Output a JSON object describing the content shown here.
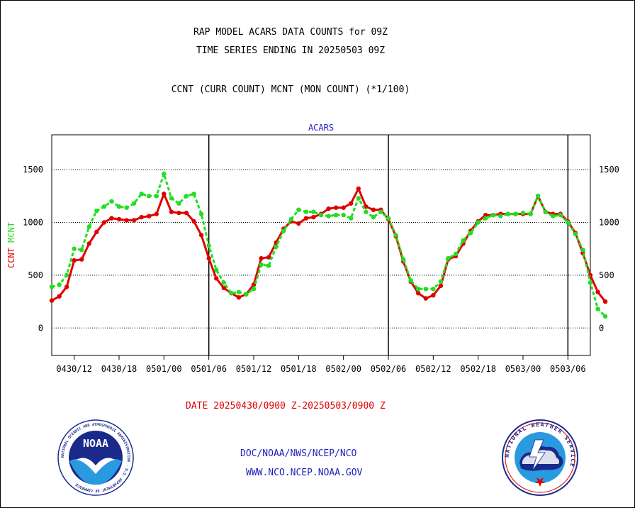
{
  "titles": {
    "line1": "RAP MODEL ACARS DATA COUNTS for 09Z",
    "line2": "TIME SERIES ENDING IN 20250503 09Z",
    "subtitle": "CCNT (CURR COUNT) MCNT (MON COUNT) (*1/100)"
  },
  "footer": {
    "date_range": "DATE 20250430/0900 Z-20250503/0900 Z",
    "org_path": "DOC/NOAA/NWS/NCEP/NCO",
    "website": "WWW.NCO.NCEP.NOAA.GOV"
  },
  "logos": {
    "noaa": {
      "text": "NOAA",
      "ring_text": "NATIONAL OCEANIC AND ATMOSPHERIC ADMINISTRATION · U.S. DEPARTMENT OF COMMERCE"
    },
    "nws": {
      "ring_text": "NATIONAL WEATHER SERVICE"
    }
  },
  "colors": {
    "ccnt": "#e00000",
    "mcnt": "#22dd22",
    "text_blue": "#2020c0",
    "text_red": "#e00000"
  },
  "chart_data": {
    "type": "line",
    "title": "ACARS",
    "ylabel_parts": [
      {
        "text": "CCNT",
        "color": "#e00000"
      },
      {
        "text": "MCNT",
        "color": "#22dd22"
      }
    ],
    "ylim": [
      -260,
      1830
    ],
    "yticks": [
      0,
      500,
      1000,
      1500
    ],
    "grid": true,
    "x_start_hour": 9,
    "x_end_hour": 81,
    "x_ticks": [
      {
        "hour": 12,
        "label": "0430/12"
      },
      {
        "hour": 18,
        "label": "0430/18"
      },
      {
        "hour": 24,
        "label": "0501/00"
      },
      {
        "hour": 30,
        "label": "0501/06"
      },
      {
        "hour": 36,
        "label": "0501/12"
      },
      {
        "hour": 42,
        "label": "0501/18"
      },
      {
        "hour": 48,
        "label": "0502/00"
      },
      {
        "hour": 54,
        "label": "0502/06"
      },
      {
        "hour": 60,
        "label": "0502/12"
      },
      {
        "hour": 66,
        "label": "0502/18"
      },
      {
        "hour": 72,
        "label": "0503/00"
      },
      {
        "hour": 78,
        "label": "0503/06"
      }
    ],
    "day_boundaries": [
      30,
      54,
      78
    ],
    "series": [
      {
        "name": "CCNT",
        "color": "#e00000",
        "values": [
          260,
          300,
          390,
          640,
          650,
          800,
          910,
          1000,
          1040,
          1030,
          1020,
          1020,
          1050,
          1060,
          1080,
          1270,
          1100,
          1090,
          1090,
          1010,
          880,
          660,
          470,
          380,
          330,
          290,
          320,
          410,
          660,
          670,
          810,
          940,
          1010,
          990,
          1040,
          1050,
          1080,
          1130,
          1140,
          1140,
          1180,
          1320,
          1150,
          1120,
          1120,
          1030,
          870,
          630,
          440,
          330,
          280,
          310,
          400,
          650,
          680,
          800,
          920,
          1010,
          1070,
          1070,
          1080,
          1080,
          1080,
          1080,
          1080,
          1250,
          1100,
          1080,
          1080,
          1010,
          900,
          710,
          500,
          340,
          250
        ]
      },
      {
        "name": "MCNT",
        "color": "#22dd22",
        "values": [
          390,
          410,
          500,
          750,
          740,
          960,
          1110,
          1150,
          1200,
          1150,
          1140,
          1180,
          1270,
          1250,
          1250,
          1460,
          1230,
          1180,
          1250,
          1270,
          1080,
          780,
          550,
          430,
          330,
          340,
          320,
          370,
          600,
          590,
          770,
          920,
          1030,
          1120,
          1100,
          1100,
          1070,
          1060,
          1070,
          1070,
          1040,
          1230,
          1100,
          1050,
          1100,
          1040,
          880,
          650,
          450,
          370,
          370,
          370,
          440,
          660,
          700,
          830,
          900,
          1000,
          1040,
          1070,
          1060,
          1080,
          1080,
          1090,
          1080,
          1250,
          1100,
          1060,
          1070,
          1000,
          890,
          740,
          430,
          180,
          110
        ]
      }
    ]
  }
}
